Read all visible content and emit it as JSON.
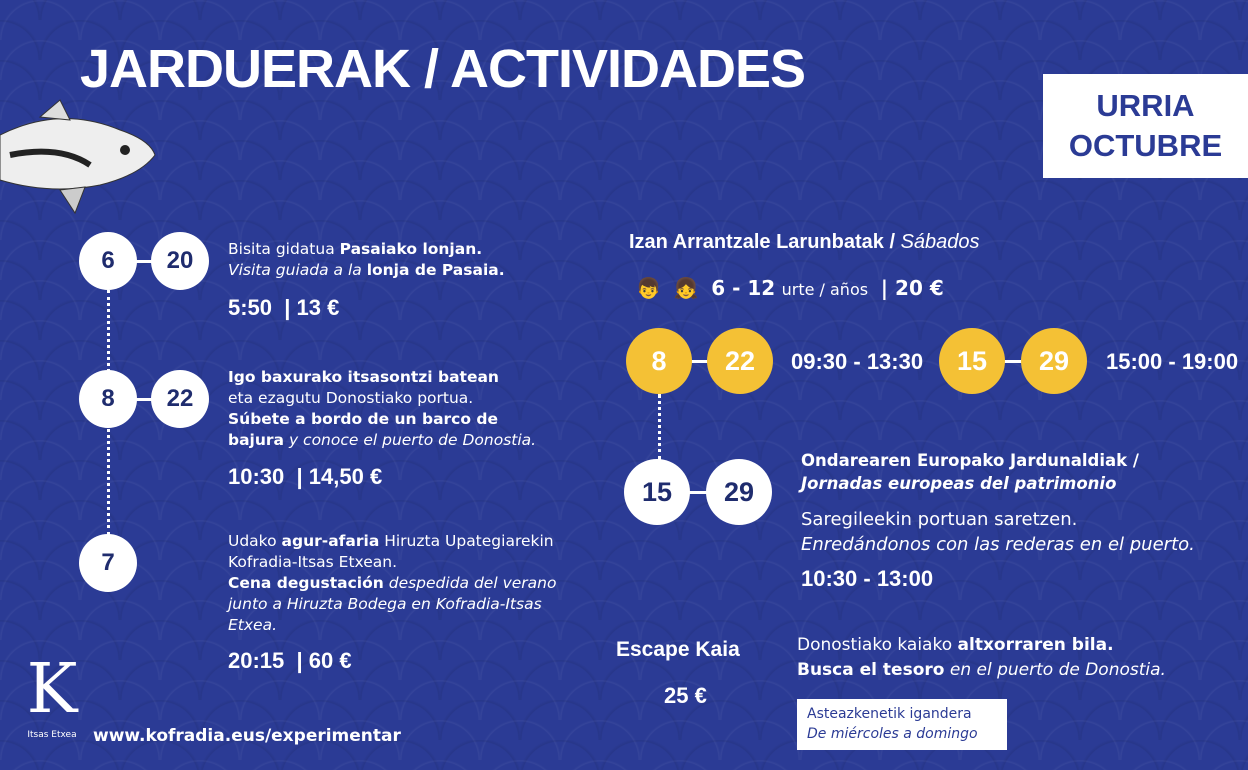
{
  "title": "JARDUERAK / ACTIVIDADES",
  "month": {
    "eu": "URRIA",
    "es": "OCTUBRE"
  },
  "left": [
    {
      "days": [
        "6",
        "20"
      ],
      "l1a": "Bisita gidatua ",
      "l1b": "Pasaiako lonjan.",
      "l2a": "Visita guiada a la ",
      "l2b": "lonja de Pasaia.",
      "time": "5:50",
      "price": "| 13 €"
    },
    {
      "days": [
        "8",
        "22"
      ],
      "l1": "Igo baxurako itsasontzi batean",
      "l2": "eta ezagutu Donostiako portua.",
      "l3": "Súbete a bordo de un barco de",
      "l4a": "bajura",
      "l4b": " y conoce el puerto de Donostia.",
      "time": "10:30",
      "price": "| 14,50 €"
    },
    {
      "days": [
        "7"
      ],
      "l1a": "Udako ",
      "l1b": "agur-afaria",
      "l1c": " Hiruzta Upategiarekin",
      "l2": "Kofradia-Itsas Etxean.",
      "l3a": "Cena degustación",
      "l3b": " despedida del verano",
      "l4": "junto a Hiruzta Bodega en Kofradia-Itsas",
      "l5": "Etxea.",
      "time": "20:15",
      "price": "| 60 €"
    }
  ],
  "saturdays": {
    "title_a": "Izan Arrantzale Larunbatak / ",
    "title_b": "Sábados",
    "age": "6 - 12",
    "age_unit": "urte / años",
    "price": "| 20 €",
    "icons": [
      "boy-icon",
      "girl-icon"
    ],
    "group1": {
      "days": [
        "8",
        "22"
      ],
      "time": "09:30 - 13:30"
    },
    "group2": {
      "days": [
        "15",
        "29"
      ],
      "time": "15:00 - 19:00"
    }
  },
  "heritage": {
    "days": [
      "15",
      "29"
    ],
    "title": "Ondarearen Europako Jardunaldiak /",
    "subtitle": "Jornadas europeas del patrimonio",
    "l1": "Saregileekin portuan saretzen.",
    "l2": "Enredándonos con las rederas en el puerto.",
    "time": "10:30 - 13:00"
  },
  "escape": {
    "title": "Escape Kaia",
    "price": "25 €",
    "l1a": "Donostiako kaiako ",
    "l1b": "altxorraren bila.",
    "l2a": "Busca el tesoro",
    "l2b": " en el puerto de Donostia.",
    "note1": "Asteazkenetik igandera",
    "note2": "De miércoles a domingo"
  },
  "footer": {
    "url": "www.kofradia.eus/experimentar",
    "logo_letter": "K",
    "logo_text": "Itsas Etxea"
  },
  "colors": {
    "background": "#2b3b95",
    "accent": "#f4c135",
    "circle_text": "#1f2c6e"
  }
}
